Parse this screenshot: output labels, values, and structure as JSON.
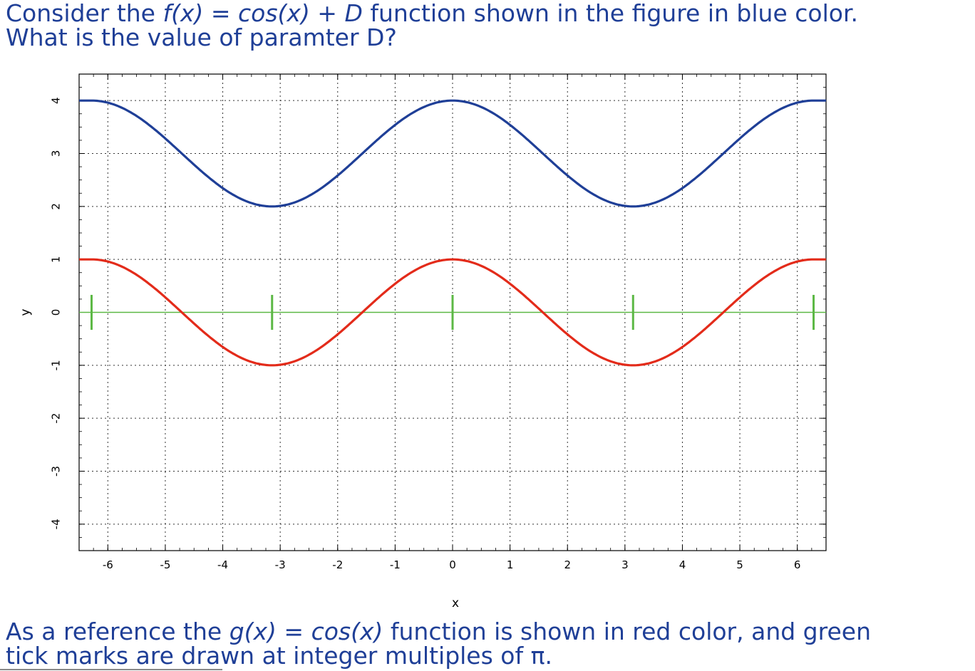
{
  "question": {
    "line1": {
      "before": "Consider the ",
      "fx": "f(x)",
      "eq": " = ",
      "expr": "cos(x) + D",
      "after": " function shown in the figure in blue color."
    },
    "line2": "What is the value of paramter D?"
  },
  "reference": {
    "line1": {
      "before": "As a reference the ",
      "gx": "g(x)",
      "eq": " = ",
      "expr": "cos(x)",
      "after": " function is shown in red color, and green"
    },
    "line2": "tick marks are drawn at integer multiples of π."
  },
  "chart_data": {
    "type": "line",
    "xlabel": "x",
    "ylabel": "y",
    "xlim": [
      -6.5,
      6.5
    ],
    "ylim": [
      -4.5,
      4.5
    ],
    "xticks": [
      -6,
      -5,
      -4,
      -3,
      -2,
      -1,
      0,
      1,
      2,
      3,
      4,
      5,
      6
    ],
    "yticks": [
      -4,
      -3,
      -2,
      -1,
      0,
      1,
      2,
      3,
      4
    ],
    "grid": true,
    "grid_style": "dotted",
    "series": [
      {
        "function": "cos(x) + 3",
        "color": "#1f3f97",
        "x_range": [
          -6.2832,
          6.2832
        ]
      },
      {
        "function": "cos(x)",
        "color": "#e32b1a",
        "x_range": [
          -6.2832,
          6.2832
        ]
      }
    ],
    "reference_line": {
      "y": 0,
      "color": "#5cb845"
    },
    "pi_markers": {
      "x": [
        -6.2832,
        -3.1416,
        0,
        3.1416,
        6.2832
      ],
      "color": "#5cb845",
      "half_height": 0.33
    }
  }
}
